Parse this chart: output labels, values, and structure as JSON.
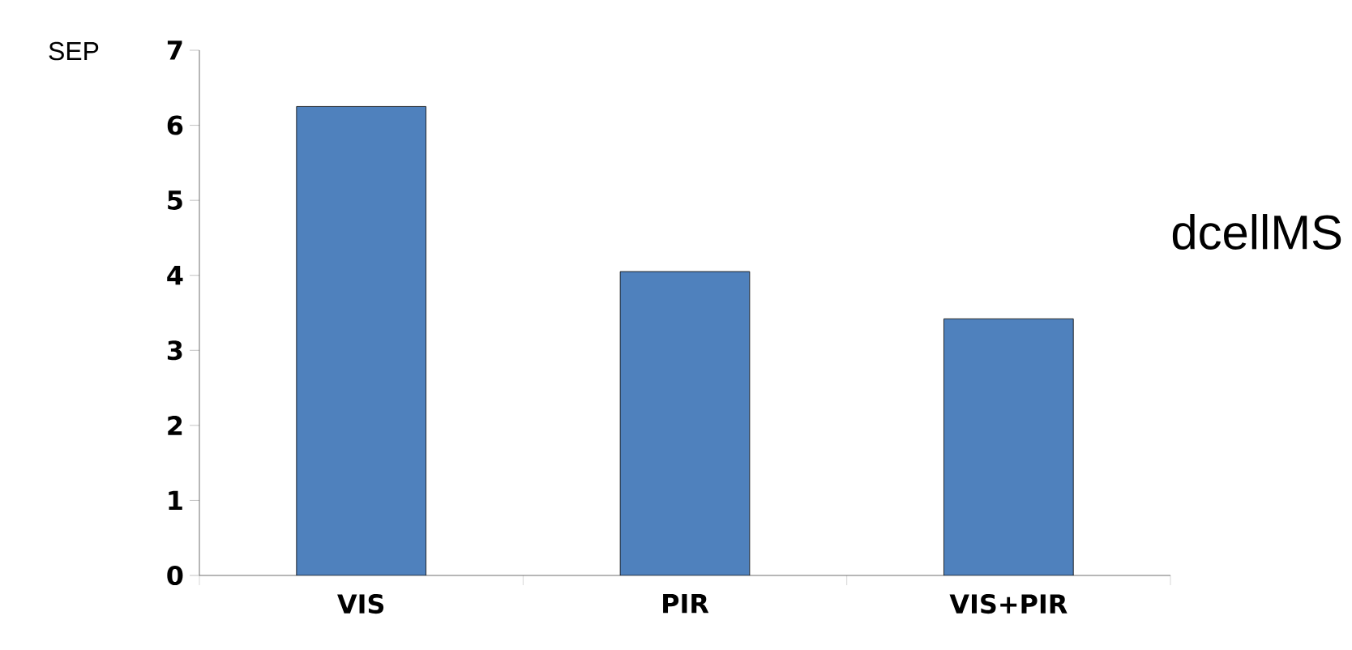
{
  "chart_data": {
    "type": "bar",
    "ylabel": "SEP",
    "categories": [
      "VIS",
      "PIR",
      "VIS+PIR"
    ],
    "values": [
      6.25,
      4.05,
      3.42
    ],
    "color": "#4f81bd",
    "ylim": [
      0,
      7
    ],
    "yticks": [
      0,
      1,
      2,
      3,
      4,
      5,
      6,
      7
    ],
    "annotations": [
      "dcellMS"
    ]
  }
}
